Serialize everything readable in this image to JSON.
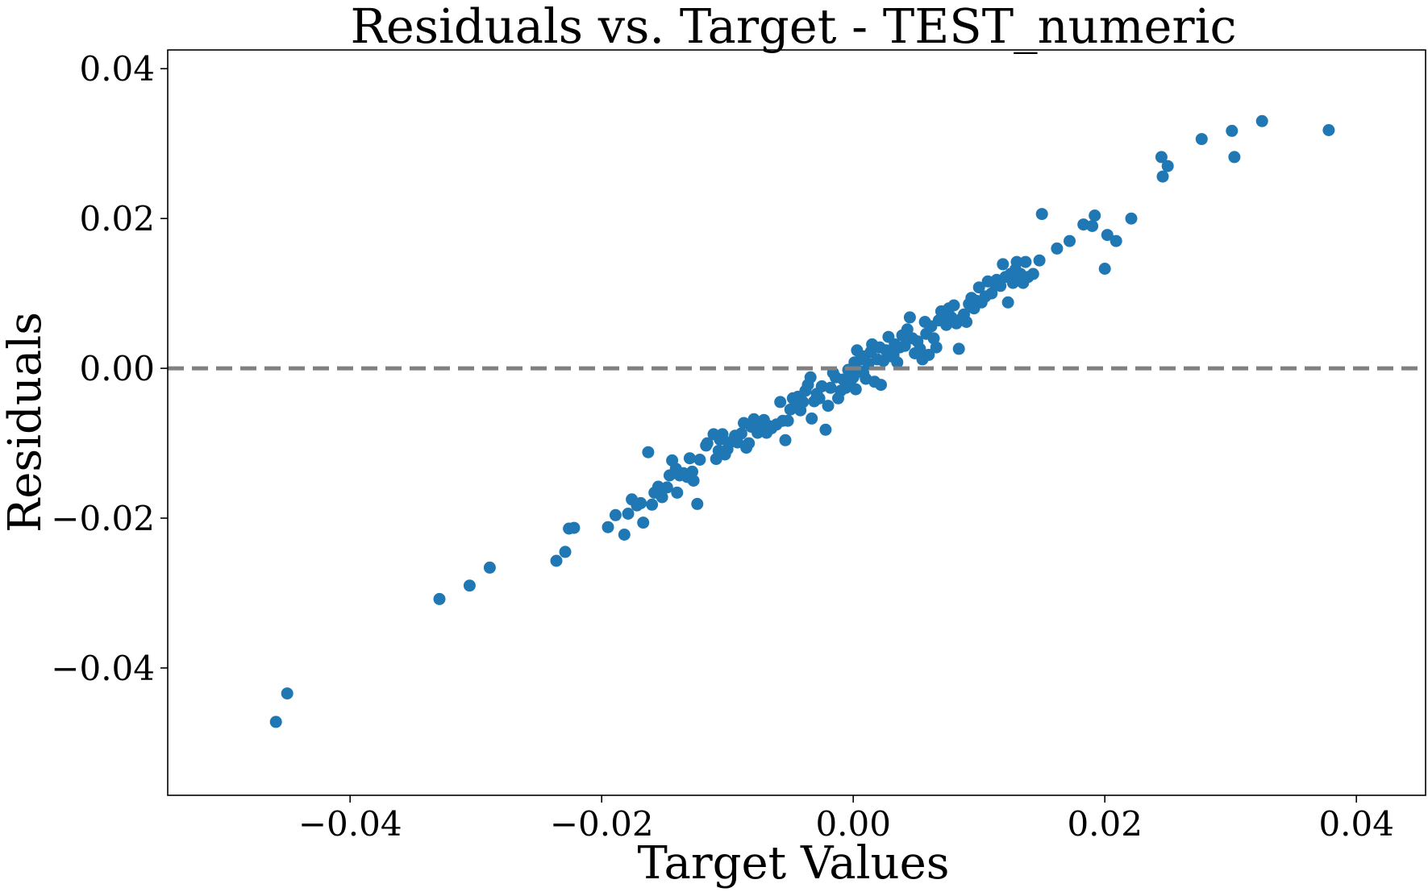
{
  "chart_data": {
    "type": "scatter",
    "title": "Residuals vs. Target - TEST_numeric",
    "xlabel": "Target Values",
    "ylabel": "Residuals",
    "xlim": [
      -0.0545,
      0.0455
    ],
    "ylim": [
      -0.057,
      0.0425
    ],
    "x_ticks": [
      -0.04,
      -0.02,
      0.0,
      0.02,
      0.04
    ],
    "x_tick_labels": [
      "−0.04",
      "−0.02",
      "0.00",
      "0.02",
      "0.04"
    ],
    "y_ticks": [
      -0.04,
      -0.02,
      0.0,
      0.02,
      0.04
    ],
    "y_tick_labels": [
      "−0.04",
      "−0.02",
      "0.00",
      "0.02",
      "0.04"
    ],
    "grid": false,
    "reference_line": {
      "y": 0.0,
      "style": "dashed",
      "color": "#808080"
    },
    "marker_color": "#1f77b4",
    "series": [
      {
        "points": [
          [
            -0.0459,
            -0.0472
          ],
          [
            -0.045,
            -0.0434
          ],
          [
            -0.0329,
            -0.0308
          ],
          [
            -0.0305,
            -0.029
          ],
          [
            -0.0289,
            -0.0266
          ],
          [
            -0.0236,
            -0.0257
          ],
          [
            -0.0229,
            -0.0245
          ],
          [
            -0.0226,
            -0.0214
          ],
          [
            -0.0222,
            -0.0213
          ],
          [
            -0.0195,
            -0.0212
          ],
          [
            -0.0189,
            -0.0196
          ],
          [
            -0.0182,
            -0.0222
          ],
          [
            -0.0179,
            -0.0194
          ],
          [
            -0.0176,
            -0.0175
          ],
          [
            -0.0172,
            -0.0183
          ],
          [
            -0.0169,
            -0.018
          ],
          [
            -0.0167,
            -0.0206
          ],
          [
            -0.0163,
            -0.0112
          ],
          [
            -0.016,
            -0.0182
          ],
          [
            -0.0158,
            -0.0166
          ],
          [
            -0.0155,
            -0.0158
          ],
          [
            -0.0152,
            -0.0172
          ],
          [
            -0.0148,
            -0.0159
          ],
          [
            -0.0146,
            -0.0143
          ],
          [
            -0.0144,
            -0.0123
          ],
          [
            -0.0141,
            -0.0134
          ],
          [
            -0.014,
            -0.0166
          ],
          [
            -0.0138,
            -0.0143
          ],
          [
            -0.0135,
            -0.014
          ],
          [
            -0.0132,
            -0.0145
          ],
          [
            -0.013,
            -0.012
          ],
          [
            -0.0128,
            -0.0138
          ],
          [
            -0.0127,
            -0.015
          ],
          [
            -0.0124,
            -0.0181
          ],
          [
            -0.0122,
            -0.0122
          ],
          [
            -0.0117,
            -0.0103
          ],
          [
            -0.0116,
            -0.01
          ],
          [
            -0.0111,
            -0.0088
          ],
          [
            -0.0109,
            -0.0121
          ],
          [
            -0.0107,
            -0.011
          ],
          [
            -0.0106,
            -0.0095
          ],
          [
            -0.0104,
            -0.0088
          ],
          [
            -0.0102,
            -0.0115
          ],
          [
            -0.01,
            -0.0108
          ],
          [
            -0.0099,
            -0.01
          ],
          [
            -0.0096,
            -0.0097
          ],
          [
            -0.0094,
            -0.009
          ],
          [
            -0.0092,
            -0.0099
          ],
          [
            -0.0089,
            -0.0087
          ],
          [
            -0.0087,
            -0.0073
          ],
          [
            -0.0085,
            -0.0106
          ],
          [
            -0.0083,
            -0.01
          ],
          [
            -0.0081,
            -0.0078
          ],
          [
            -0.0079,
            -0.0068
          ],
          [
            -0.0076,
            -0.0086
          ],
          [
            -0.0073,
            -0.008
          ],
          [
            -0.0071,
            -0.0069
          ],
          [
            -0.0069,
            -0.0086
          ],
          [
            -0.0067,
            -0.0077
          ],
          [
            -0.0065,
            -0.008
          ],
          [
            -0.0061,
            -0.0075
          ],
          [
            -0.0058,
            -0.0045
          ],
          [
            -0.0056,
            -0.007
          ],
          [
            -0.0054,
            -0.0096
          ],
          [
            -0.0052,
            -0.007
          ],
          [
            -0.005,
            -0.0055
          ],
          [
            -0.0048,
            -0.004
          ],
          [
            -0.0046,
            -0.0052
          ],
          [
            -0.0044,
            -0.0038
          ],
          [
            -0.0042,
            -0.0056
          ],
          [
            -0.004,
            -0.0045
          ],
          [
            -0.0038,
            -0.003
          ],
          [
            -0.0036,
            -0.0022
          ],
          [
            -0.0034,
            -0.0012
          ],
          [
            -0.0033,
            -0.0067
          ],
          [
            -0.0031,
            -0.0044
          ],
          [
            -0.0029,
            -0.0034
          ],
          [
            -0.0027,
            -0.004
          ],
          [
            -0.0025,
            -0.0024
          ],
          [
            -0.0022,
            -0.0082
          ],
          [
            -0.002,
            -0.005
          ],
          [
            -0.0018,
            -0.0026
          ],
          [
            -0.0016,
            -0.0006
          ],
          [
            -0.0014,
            -0.0012
          ],
          [
            -0.0012,
            -0.004
          ],
          [
            -0.001,
            -0.003
          ],
          [
            -0.0008,
            -0.0015
          ],
          [
            -0.0006,
            -0.0026
          ],
          [
            -0.0004,
            -0.0002
          ],
          [
            -0.0002,
            -0.0016
          ],
          [
            0.0,
            -0.0012
          ],
          [
            0.0001,
            0.0008
          ],
          [
            0.0002,
            -0.0028
          ],
          [
            0.0003,
            0.0024
          ],
          [
            0.0005,
            -0.0004
          ],
          [
            0.0006,
            0.0012
          ],
          [
            0.0008,
            -0.0006
          ],
          [
            0.0009,
            0.0016
          ],
          [
            0.001,
            -0.0014
          ],
          [
            0.0012,
            0.0006
          ],
          [
            0.0014,
            0.0022
          ],
          [
            0.0015,
            0.0032
          ],
          [
            0.0017,
            -0.0018
          ],
          [
            0.0019,
            0.0012
          ],
          [
            0.0021,
            0.0028
          ],
          [
            0.0022,
            -0.0022
          ],
          [
            0.0024,
            0.001
          ],
          [
            0.0026,
            0.0024
          ],
          [
            0.0028,
            0.0042
          ],
          [
            0.003,
            0.0016
          ],
          [
            0.0032,
            0.0018
          ],
          [
            0.0033,
            0.0032
          ],
          [
            0.0035,
            0.0008
          ],
          [
            0.0037,
            0.0028
          ],
          [
            0.0039,
            0.0044
          ],
          [
            0.0041,
            0.003
          ],
          [
            0.0043,
            0.0052
          ],
          [
            0.0045,
            0.0068
          ],
          [
            0.0047,
            0.004
          ],
          [
            0.0049,
            0.002
          ],
          [
            0.0051,
            0.0036
          ],
          [
            0.0053,
            0.0026
          ],
          [
            0.0055,
            0.0012
          ],
          [
            0.0057,
            0.0062
          ],
          [
            0.0058,
            0.0046
          ],
          [
            0.006,
            0.0018
          ],
          [
            0.0062,
            0.0056
          ],
          [
            0.0064,
            0.004
          ],
          [
            0.0066,
            0.0028
          ],
          [
            0.0068,
            0.0064
          ],
          [
            0.007,
            0.0076
          ],
          [
            0.0072,
            0.0072
          ],
          [
            0.0074,
            0.0058
          ],
          [
            0.0076,
            0.008
          ],
          [
            0.0078,
            0.0068
          ],
          [
            0.008,
            0.0084
          ],
          [
            0.0082,
            0.006
          ],
          [
            0.0084,
            0.0026
          ],
          [
            0.0086,
            0.0066
          ],
          [
            0.0088,
            0.0072
          ],
          [
            0.009,
            0.0062
          ],
          [
            0.0092,
            0.0086
          ],
          [
            0.0094,
            0.0094
          ],
          [
            0.0096,
            0.008
          ],
          [
            0.0098,
            0.009
          ],
          [
            0.01,
            0.0108
          ],
          [
            0.0102,
            0.0088
          ],
          [
            0.0105,
            0.0096
          ],
          [
            0.0107,
            0.0116
          ],
          [
            0.011,
            0.01
          ],
          [
            0.0112,
            0.0114
          ],
          [
            0.0114,
            0.0118
          ],
          [
            0.0117,
            0.011
          ],
          [
            0.0119,
            0.0139
          ],
          [
            0.0121,
            0.0122
          ],
          [
            0.0123,
            0.0088
          ],
          [
            0.0125,
            0.0126
          ],
          [
            0.0127,
            0.0114
          ],
          [
            0.0129,
            0.0132
          ],
          [
            0.013,
            0.0142
          ],
          [
            0.0131,
            0.0118
          ],
          [
            0.0133,
            0.0126
          ],
          [
            0.0135,
            0.0114
          ],
          [
            0.0137,
            0.0142
          ],
          [
            0.0139,
            0.0122
          ],
          [
            0.0143,
            0.0126
          ],
          [
            0.0148,
            0.0144
          ],
          [
            0.015,
            0.0206
          ],
          [
            0.0162,
            0.016
          ],
          [
            0.0172,
            0.017
          ],
          [
            0.0183,
            0.0192
          ],
          [
            0.019,
            0.019
          ],
          [
            0.0192,
            0.0204
          ],
          [
            0.02,
            0.0133
          ],
          [
            0.0202,
            0.0178
          ],
          [
            0.0209,
            0.017
          ],
          [
            0.0221,
            0.02
          ],
          [
            0.0245,
            0.0282
          ],
          [
            0.0246,
            0.0256
          ],
          [
            0.025,
            0.027
          ],
          [
            0.0277,
            0.0306
          ],
          [
            0.0301,
            0.0317
          ],
          [
            0.0303,
            0.0282
          ],
          [
            0.0325,
            0.033
          ],
          [
            0.0378,
            0.0318
          ]
        ]
      }
    ]
  }
}
